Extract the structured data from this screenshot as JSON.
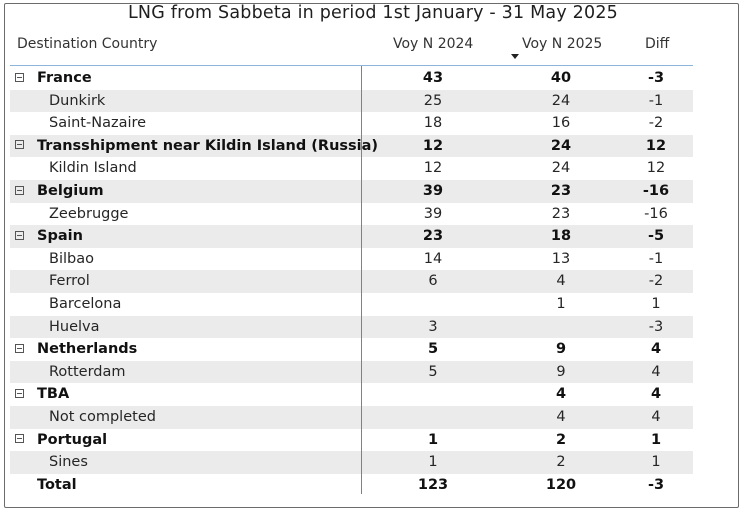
{
  "title": "LNG from Sabbeta in period 1st January - 31 May 2025",
  "headers": {
    "destination": "Destination Country",
    "voy2024": "Voy N 2024",
    "voy2025": "Voy N 2025",
    "diff": "Diff",
    "sort_indicator": "sort-descending-icon on Voy N 2025"
  },
  "rows": [
    {
      "label": "France",
      "v2024": "43",
      "v2025": "40",
      "diff": "-3",
      "level": 0
    },
    {
      "label": "Dunkirk",
      "v2024": "25",
      "v2025": "24",
      "diff": "-1",
      "level": 1
    },
    {
      "label": "Saint-Nazaire",
      "v2024": "18",
      "v2025": "16",
      "diff": "-2",
      "level": 1
    },
    {
      "label": "Transshipment near Kildin Island (Russia)",
      "v2024": "12",
      "v2025": "24",
      "diff": "12",
      "level": 0
    },
    {
      "label": "Kildin Island",
      "v2024": "12",
      "v2025": "24",
      "diff": "12",
      "level": 1
    },
    {
      "label": "Belgium",
      "v2024": "39",
      "v2025": "23",
      "diff": "-16",
      "level": 0
    },
    {
      "label": "Zeebrugge",
      "v2024": "39",
      "v2025": "23",
      "diff": "-16",
      "level": 1
    },
    {
      "label": "Spain",
      "v2024": "23",
      "v2025": "18",
      "diff": "-5",
      "level": 0
    },
    {
      "label": "Bilbao",
      "v2024": "14",
      "v2025": "13",
      "diff": "-1",
      "level": 1
    },
    {
      "label": "Ferrol",
      "v2024": "6",
      "v2025": "4",
      "diff": "-2",
      "level": 1
    },
    {
      "label": "Barcelona",
      "v2024": "",
      "v2025": "1",
      "diff": "1",
      "level": 1
    },
    {
      "label": "Huelva",
      "v2024": "3",
      "v2025": "",
      "diff": "-3",
      "level": 1
    },
    {
      "label": "Netherlands",
      "v2024": "5",
      "v2025": "9",
      "diff": "4",
      "level": 0
    },
    {
      "label": "Rotterdam",
      "v2024": "5",
      "v2025": "9",
      "diff": "4",
      "level": 1
    },
    {
      "label": "TBA",
      "v2024": "",
      "v2025": "4",
      "diff": "4",
      "level": 0
    },
    {
      "label": "Not completed",
      "v2024": "",
      "v2025": "4",
      "diff": "4",
      "level": 1
    },
    {
      "label": "Portugal",
      "v2024": "1",
      "v2025": "2",
      "diff": "1",
      "level": 0
    },
    {
      "label": "Sines",
      "v2024": "1",
      "v2025": "2",
      "diff": "1",
      "level": 1
    }
  ],
  "total": {
    "label": "Total",
    "v2024": "123",
    "v2025": "120",
    "diff": "-3"
  }
}
